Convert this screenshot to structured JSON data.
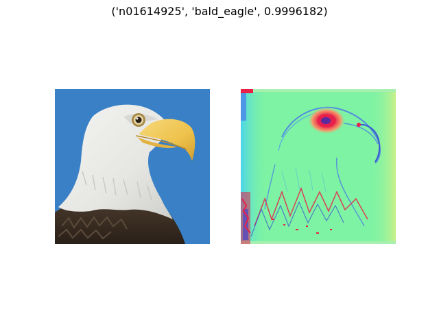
{
  "figure": {
    "title": "('n01614925', 'bald_eagle', 0.9996182)"
  },
  "panels": {
    "original_image": {
      "subject": "bald eagle head photograph",
      "background_color": "#3a80c6"
    },
    "saliency_map": {
      "subject": "gradient saliency heatmap of bald eagle",
      "colormap": "jet",
      "base_color": "#7ef3a4"
    }
  }
}
